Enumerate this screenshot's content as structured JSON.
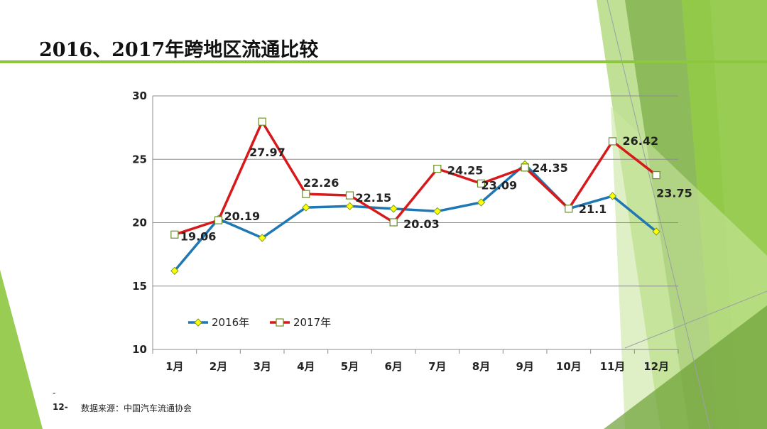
{
  "slide": {
    "title": "2016、2017年跨地区流通比较",
    "page_number": "12-",
    "footer_dash": "-",
    "source": "数据来源：中国汽车流通协会"
  },
  "colors": {
    "accent": "#8DC63F",
    "series_2016": "#1F77B4",
    "series_2017": "#D7191C",
    "marker_2016": "#FFFF00"
  },
  "chart_data": {
    "type": "line",
    "categories": [
      "1月",
      "2月",
      "3月",
      "4月",
      "5月",
      "6月",
      "7月",
      "8月",
      "9月",
      "10月",
      "11月",
      "12月"
    ],
    "ylim": [
      10,
      30
    ],
    "yticks": [
      10,
      15,
      20,
      25,
      30
    ],
    "grid": true,
    "legend_position": "lower-left",
    "series": [
      {
        "name": "2016年",
        "values": [
          16.2,
          20.3,
          18.8,
          21.2,
          21.3,
          21.1,
          20.9,
          21.6,
          24.6,
          21.1,
          22.1,
          19.3
        ],
        "labels": []
      },
      {
        "name": "2017年",
        "values": [
          19.06,
          20.19,
          27.97,
          22.26,
          22.15,
          20.03,
          24.25,
          23.09,
          24.35,
          21.1,
          26.42,
          23.75
        ],
        "labels": [
          "19.06",
          "20.19",
          "27.97",
          "22.26",
          "22.15",
          "20.03",
          "24.25",
          "23.09",
          "24.35",
          "21.1",
          "26.42",
          "23.75"
        ]
      }
    ]
  }
}
